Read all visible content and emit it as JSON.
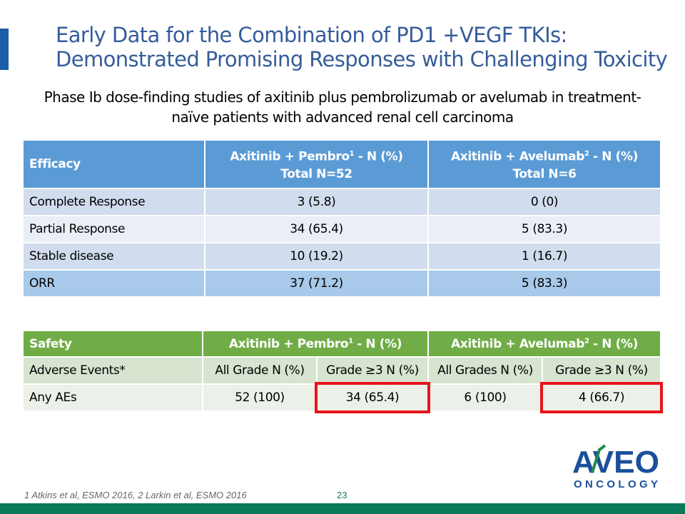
{
  "title": "Early Data for the Combination of PD1 +VEGF TKIs: Demonstrated Promising Responses with Challenging Toxicity",
  "subtitle": "Phase Ib dose-finding studies of axitinib plus pembrolizumab or avelumab in treatment-naïve patients with advanced renal cell carcinoma",
  "efficacy": {
    "headers": {
      "c0": "Efficacy",
      "c1a": "Axitinib + Pembro",
      "c1sup": "1",
      "c1b": " - N (%)",
      "c1total": "Total N=52",
      "c2a": "Axitinib + Avelumab",
      "c2sup": "2",
      "c2b": " - N (%)",
      "c2total": "Total N=6"
    },
    "rows": [
      [
        "Complete Response",
        "3 (5.8)",
        "0 (0)"
      ],
      [
        "Partial Response",
        "34 (65.4)",
        "5 (83.3)"
      ],
      [
        "Stable disease",
        "10 (19.2)",
        "1 (16.7)"
      ],
      [
        "ORR",
        "37 (71.2)",
        "5 (83.3)"
      ]
    ]
  },
  "safety": {
    "headers": {
      "c0": "Safety",
      "c1a": "Axitinib + Pembro",
      "c1sup": "1",
      "c1b": " - N (%)",
      "c2a": "Axitinib + Avelumab",
      "c2sup": "2",
      "c2b": " - N (%)"
    },
    "subheader": [
      "Adverse Events*",
      "All Grade N (%)",
      "Grade ≥3 N (%)",
      "All Grades N (%)",
      "Grade ≥3 N (%)"
    ],
    "row": [
      "Any AEs",
      "52 (100)",
      "34 (65.4)",
      "6 (100)",
      "4 (66.7)"
    ]
  },
  "footnote": "1 Atkins et al, ESMO 2016, 2 Larkin et al, ESMO 2016",
  "page_number": "23",
  "logo": {
    "text": "AVEO",
    "sub": "ONCOLOGY"
  }
}
